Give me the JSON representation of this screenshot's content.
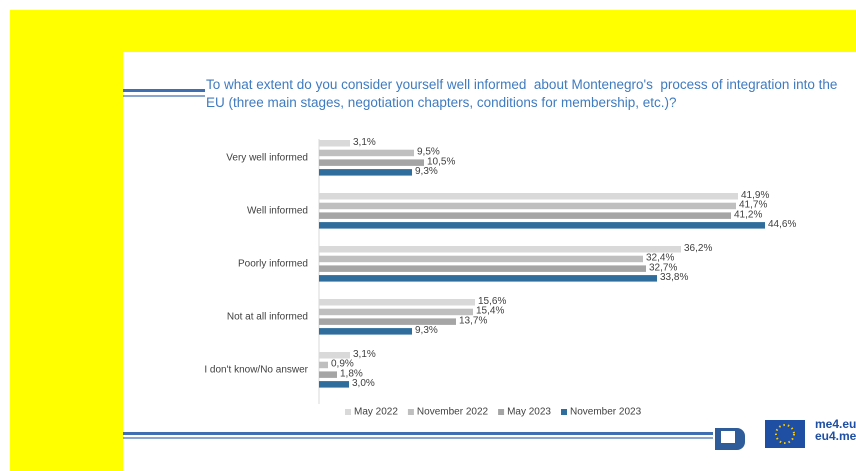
{
  "chart_data": {
    "type": "bar",
    "orientation": "horizontal",
    "title": "To what extent do you consider yourself well informed  about Montenegro's  process of integration into the EU (three main stages, negotiation chapters, conditions for membership, etc.)?",
    "categories": [
      "Very well informed",
      "Well informed",
      "Poorly informed",
      "Not at all informed",
      "I don't know/No answer"
    ],
    "series": [
      {
        "name": "May 2022",
        "color": "#d9d9d9",
        "values": [
          3.1,
          41.9,
          36.2,
          15.6,
          3.1
        ],
        "value_labels": [
          "3,1%",
          "41,9%",
          "36,2%",
          "15,6%",
          "3,1%"
        ]
      },
      {
        "name": "November 2022",
        "color": "#bfbfbf",
        "values": [
          9.5,
          41.7,
          32.4,
          15.4,
          0.9
        ],
        "value_labels": [
          "9,5%",
          "41,7%",
          "32,4%",
          "15,4%",
          "0,9%"
        ]
      },
      {
        "name": "May 2023",
        "color": "#a5a5a5",
        "values": [
          10.5,
          41.2,
          32.7,
          13.7,
          1.8
        ],
        "value_labels": [
          "10,5%",
          "41,2%",
          "32,7%",
          "13,7%",
          "1,8%"
        ]
      },
      {
        "name": "November 2023",
        "color": "#2e6d9c",
        "values": [
          9.3,
          44.6,
          33.8,
          9.3,
          3.0
        ],
        "value_labels": [
          "9,3%",
          "44,6%",
          "33,8%",
          "9,3%",
          "3,0%"
        ]
      }
    ],
    "legend": "bottom",
    "logo_text": [
      "me4.eu",
      "eu4.me"
    ]
  }
}
